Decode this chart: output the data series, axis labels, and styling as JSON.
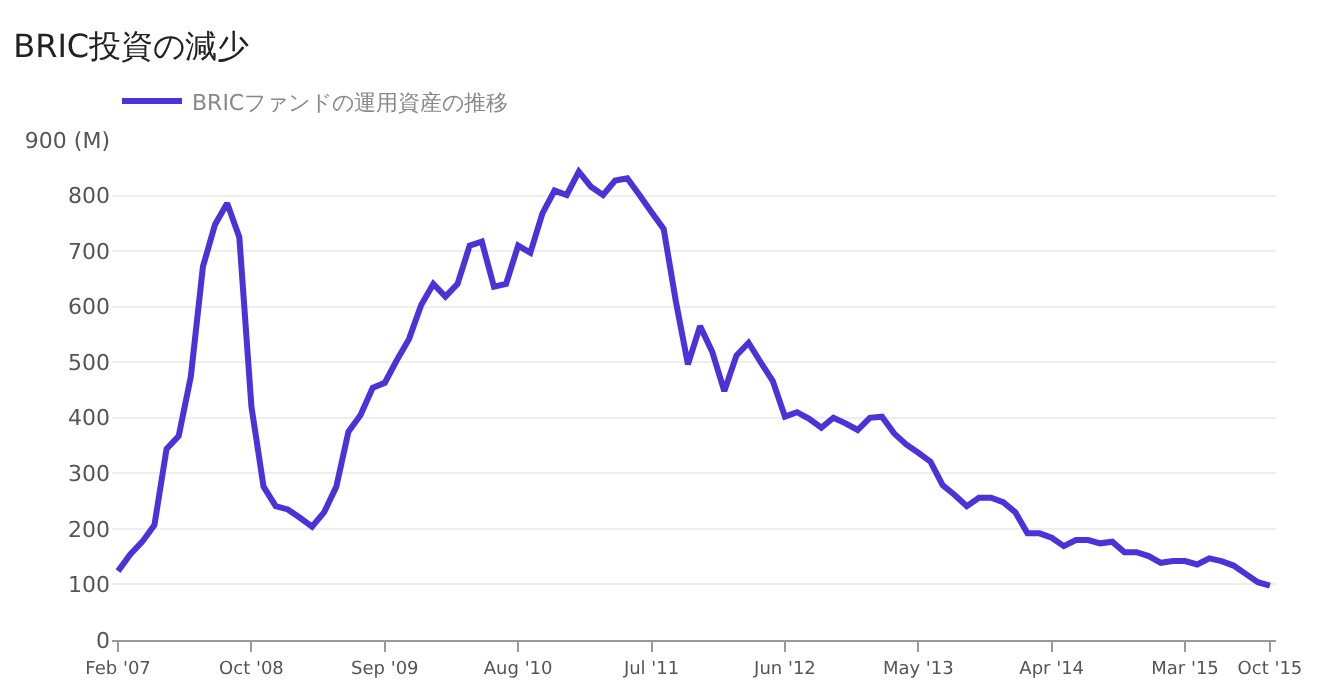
{
  "chart_data": {
    "type": "line",
    "title": "BRIC投資の減少",
    "categories": [
      "Feb '07",
      null,
      null,
      null,
      null,
      null,
      null,
      null,
      null,
      null,
      null,
      "Oct '08",
      null,
      null,
      null,
      null,
      null,
      null,
      null,
      null,
      null,
      null,
      "Sep '09",
      null,
      null,
      null,
      null,
      null,
      null,
      null,
      null,
      null,
      null,
      "Aug '10",
      null,
      null,
      null,
      null,
      null,
      null,
      null,
      null,
      null,
      null,
      "Jul '11",
      null,
      null,
      null,
      null,
      null,
      null,
      null,
      null,
      null,
      null,
      "Jun '12",
      null,
      null,
      null,
      null,
      null,
      null,
      null,
      null,
      null,
      null,
      "May '13",
      null,
      null,
      null,
      null,
      null,
      null,
      null,
      null,
      null,
      null,
      "Apr '14",
      null,
      null,
      null,
      null,
      null,
      null,
      null,
      null,
      null,
      null,
      "Mar '15",
      null,
      null,
      null,
      null,
      null,
      null,
      "Oct '15"
    ],
    "series": [
      {
        "name": "BRICファンドの運用資産の推移",
        "color": "#4b32d9",
        "values": [
          124,
          154,
          177,
          207,
          344,
          367,
          474,
          672,
          748,
          786,
          725,
          420,
          276,
          241,
          235,
          220,
          204,
          230,
          276,
          375,
          405,
          454,
          463,
          504,
          542,
          603,
          641,
          618,
          641,
          710,
          717,
          636,
          641,
          710,
          697,
          768,
          809,
          801,
          843,
          816,
          801,
          827,
          831,
          801,
          770,
          740,
          610,
          496,
          565,
          519,
          448,
          512,
          535,
          500,
          466,
          402,
          410,
          398,
          382,
          400,
          390,
          378,
          400,
          402,
          372,
          352,
          337,
          321,
          279,
          261,
          241,
          256,
          256,
          248,
          230,
          192,
          192,
          184,
          169,
          180,
          180,
          174,
          177,
          158,
          158,
          151,
          139,
          142,
          142,
          136,
          147,
          142,
          134,
          119,
          104,
          98
        ]
      }
    ],
    "ylim": [
      0,
      900
    ],
    "yticks": [
      0,
      100,
      200,
      300,
      400,
      500,
      600,
      700,
      800,
      {
        "value": 900,
        "label": "900 (M)"
      }
    ],
    "grid": "y",
    "legend": "top left",
    "marker": "none",
    "line_style": "solid"
  }
}
